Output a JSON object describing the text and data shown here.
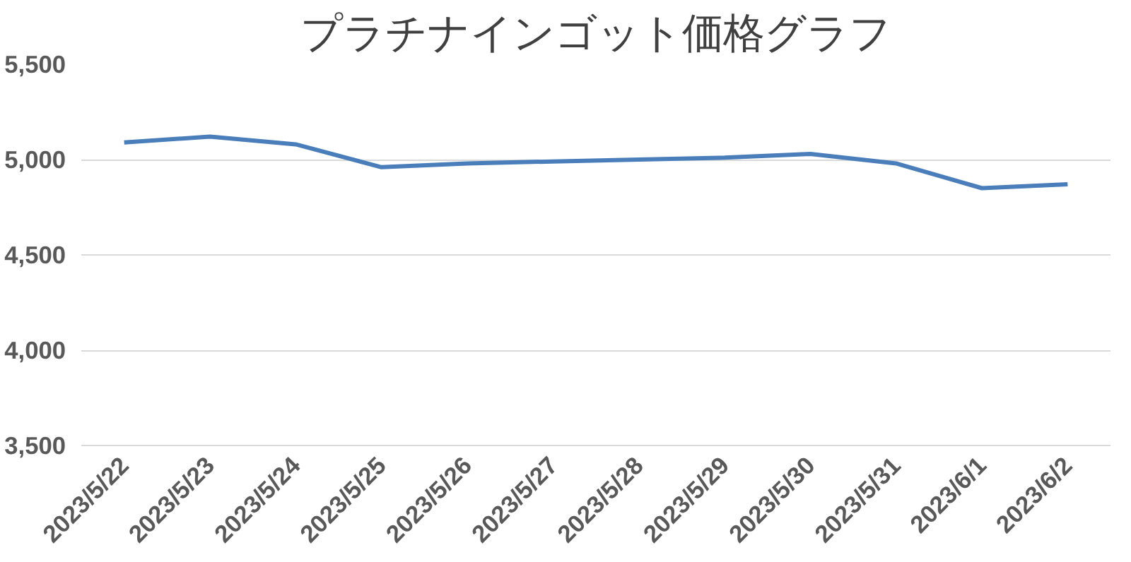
{
  "chart_data": {
    "type": "line",
    "title": "プラチナインゴット価格グラフ",
    "categories": [
      "2023/5/22",
      "2023/5/23",
      "2023/5/24",
      "2023/5/25",
      "2023/5/26",
      "2023/5/27",
      "2023/5/28",
      "2023/5/29",
      "2023/5/30",
      "2023/5/31",
      "2023/6/1",
      "2023/6/2"
    ],
    "series": [
      {
        "color": "#4a7ebb",
        "values": [
          5090,
          5120,
          5080,
          4960,
          4980,
          4990,
          5000,
          5010,
          5030,
          4980,
          4850,
          4870
        ]
      }
    ],
    "ylim": [
      3500,
      5500
    ],
    "yticks": [
      {
        "value": 3500,
        "label": "3,500"
      },
      {
        "value": 4000,
        "label": "4,000"
      },
      {
        "value": 4500,
        "label": "4,500"
      },
      {
        "value": 5000,
        "label": "5,000"
      },
      {
        "value": 5500,
        "label": "5,500"
      }
    ],
    "grid": "y",
    "marker": "none",
    "line_style": "solid"
  }
}
